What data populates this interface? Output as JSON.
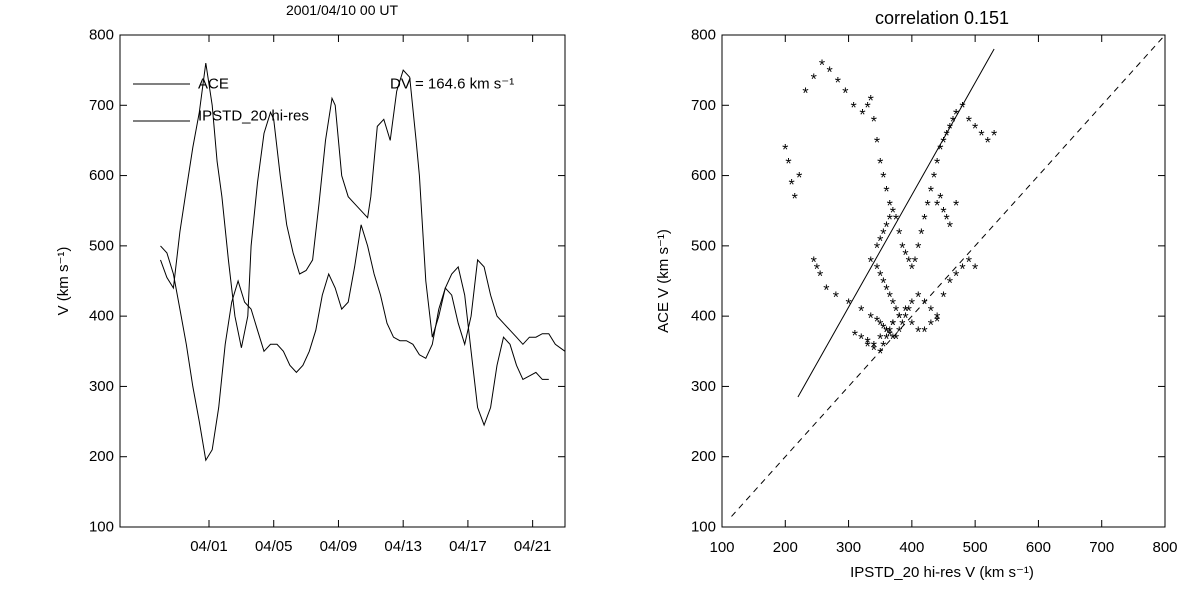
{
  "chart_data": [
    {
      "type": "line",
      "title": "2001/04/10 00 UT",
      "xlabel": "",
      "ylabel": "V (km s⁻¹)",
      "ylim": [
        100,
        800
      ],
      "xlim_day": [
        -4.5,
        23.0
      ],
      "xlim_note": "x values are days of April 2001 (negative = days before April 1)",
      "x_ticks": [
        {
          "x": 1,
          "label": "04/01"
        },
        {
          "x": 5,
          "label": "04/05"
        },
        {
          "x": 9,
          "label": "04/09"
        },
        {
          "x": 13,
          "label": "04/13"
        },
        {
          "x": 17,
          "label": "04/17"
        },
        {
          "x": 21,
          "label": "04/21"
        }
      ],
      "y_ticks": [
        100,
        200,
        300,
        400,
        500,
        600,
        700,
        800
      ],
      "annotation": "DV = 164.6 km s⁻¹",
      "legend": {
        "position": "top-left",
        "entries": [
          "ACE",
          "IPSTD_20 hi-res"
        ]
      },
      "series": [
        {
          "name": "ACE",
          "x": [
            -2.0,
            -1.6,
            -1.2,
            -0.8,
            -0.4,
            0.0,
            0.4,
            0.8,
            1.2,
            1.5,
            1.8,
            2.2,
            2.6,
            3.0,
            3.4,
            3.6,
            4.0,
            4.4,
            4.8,
            5.0,
            5.4,
            5.8,
            6.2,
            6.6,
            7.0,
            7.4,
            7.8,
            8.2,
            8.6,
            8.8,
            9.2,
            9.6,
            10.0,
            10.4,
            10.8,
            11.0,
            11.4,
            11.8,
            12.2,
            12.6,
            13.0,
            13.4,
            13.8,
            14.0,
            14.4,
            14.8,
            15.2,
            15.6,
            16.0,
            16.4,
            16.8,
            17.2,
            17.6,
            18.0,
            18.4,
            18.8,
            19.2,
            19.6,
            20.0,
            20.4,
            20.8,
            21.2,
            21.6,
            22.0,
            22.4,
            23.0
          ],
          "y": [
            480,
            455,
            440,
            520,
            580,
            640,
            690,
            760,
            700,
            620,
            570,
            480,
            400,
            355,
            400,
            500,
            590,
            660,
            690,
            680,
            600,
            530,
            490,
            460,
            465,
            480,
            560,
            650,
            710,
            700,
            600,
            570,
            560,
            550,
            540,
            570,
            670,
            680,
            650,
            720,
            750,
            740,
            650,
            600,
            450,
            370,
            400,
            440,
            430,
            390,
            360,
            400,
            480,
            470,
            430,
            400,
            390,
            380,
            370,
            360,
            370,
            370,
            375,
            375,
            360,
            350
          ]
        },
        {
          "name": "IPSTD_20 hi-res",
          "x": [
            -2.0,
            -1.6,
            -1.2,
            -0.8,
            -0.4,
            0.0,
            0.4,
            0.8,
            1.2,
            1.6,
            2.0,
            2.4,
            2.8,
            3.2,
            3.6,
            4.0,
            4.4,
            4.8,
            5.2,
            5.6,
            6.0,
            6.4,
            6.8,
            7.2,
            7.6,
            8.0,
            8.4,
            8.8,
            9.2,
            9.6,
            10.0,
            10.4,
            10.8,
            11.2,
            11.6,
            12.0,
            12.4,
            12.8,
            13.2,
            13.6,
            14.0,
            14.4,
            14.8,
            15.2,
            15.6,
            16.0,
            16.4,
            16.8,
            17.2,
            17.6,
            18.0,
            18.4,
            18.8,
            19.2,
            19.6,
            20.0,
            20.4,
            20.8,
            21.2,
            21.6,
            22.0
          ],
          "y": [
            500,
            490,
            460,
            410,
            360,
            300,
            250,
            195,
            210,
            270,
            360,
            420,
            450,
            420,
            410,
            380,
            350,
            360,
            360,
            350,
            330,
            320,
            330,
            350,
            380,
            430,
            460,
            440,
            410,
            420,
            470,
            530,
            500,
            460,
            430,
            390,
            370,
            365,
            365,
            360,
            345,
            340,
            360,
            410,
            440,
            460,
            470,
            430,
            350,
            270,
            245,
            270,
            330,
            370,
            360,
            330,
            310,
            315,
            320,
            310,
            310
          ]
        }
      ]
    },
    {
      "type": "scatter",
      "title": "correlation 0.151",
      "xlabel": "IPSTD_20 hi-res V (km s⁻¹)",
      "ylabel": "ACE V (km s⁻¹)",
      "xlim": [
        100,
        800
      ],
      "ylim": [
        100,
        800
      ],
      "x_ticks": [
        100,
        200,
        300,
        400,
        500,
        600,
        700,
        800
      ],
      "y_ticks": [
        100,
        200,
        300,
        400,
        500,
        600,
        700,
        800
      ],
      "marker": "*",
      "fit_line": {
        "x": [
          220,
          530
        ],
        "y": [
          285,
          780
        ]
      },
      "identity_line": {
        "x": [
          115,
          800
        ],
        "y": [
          115,
          800
        ]
      },
      "points": {
        "x": [
          200,
          205,
          210,
          215,
          222,
          232,
          245,
          258,
          270,
          283,
          295,
          308,
          322,
          330,
          335,
          340,
          345,
          350,
          355,
          360,
          365,
          370,
          375,
          380,
          385,
          390,
          395,
          400,
          405,
          410,
          415,
          420,
          425,
          430,
          435,
          440,
          445,
          450,
          455,
          460,
          465,
          470,
          480,
          490,
          500,
          510,
          520,
          530,
          245,
          250,
          255,
          265,
          280,
          300,
          320,
          335,
          345,
          350,
          355,
          360,
          365,
          370,
          375,
          380,
          385,
          390,
          395,
          400,
          410,
          420,
          430,
          440,
          450,
          460,
          470,
          480,
          490,
          500,
          310,
          320,
          330,
          340,
          350,
          360,
          370,
          380,
          330,
          340,
          350,
          355,
          360,
          365,
          370,
          380,
          390,
          400,
          410,
          420,
          430,
          440,
          335,
          345,
          350,
          355,
          360,
          365,
          370,
          375,
          345,
          350,
          355,
          360,
          365,
          440,
          445,
          450,
          455,
          460,
          470
        ],
        "y": [
          640,
          620,
          590,
          570,
          600,
          720,
          740,
          760,
          750,
          735,
          720,
          700,
          690,
          700,
          710,
          680,
          650,
          620,
          600,
          580,
          560,
          550,
          540,
          520,
          500,
          490,
          480,
          470,
          480,
          500,
          520,
          540,
          560,
          580,
          600,
          620,
          640,
          650,
          660,
          670,
          680,
          690,
          700,
          680,
          670,
          660,
          650,
          660,
          480,
          470,
          460,
          440,
          430,
          420,
          410,
          400,
          395,
          390,
          385,
          380,
          375,
          370,
          370,
          380,
          390,
          400,
          410,
          420,
          430,
          420,
          410,
          400,
          430,
          450,
          460,
          470,
          480,
          470,
          375,
          370,
          365,
          360,
          370,
          380,
          390,
          400,
          360,
          355,
          350,
          360,
          370,
          380,
          390,
          400,
          410,
          390,
          380,
          380,
          390,
          395,
          480,
          470,
          460,
          450,
          440,
          430,
          420,
          410,
          500,
          510,
          520,
          530,
          540,
          560,
          570,
          550,
          540,
          530,
          560
        ]
      }
    }
  ]
}
